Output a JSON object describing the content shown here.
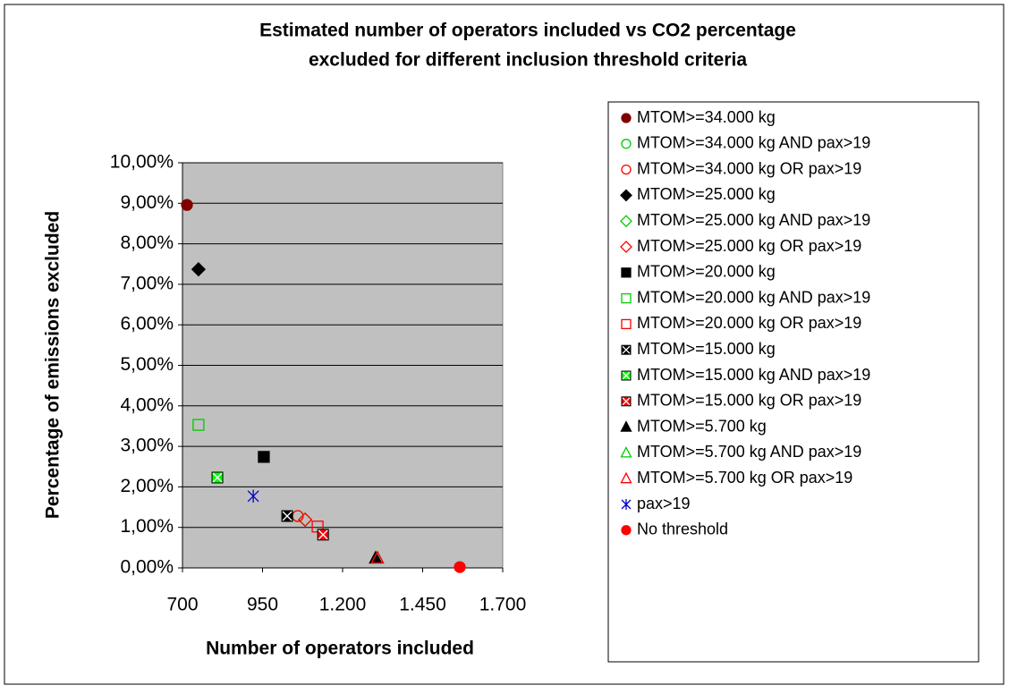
{
  "chart_data": {
    "type": "scatter",
    "title": [
      "Estimated number of operators included vs CO2 percentage",
      "excluded for different inclusion threshold criteria"
    ],
    "x_label": "Number of operators included",
    "y_label": "Percentage of emissions excluded",
    "xlim": [
      700,
      1700
    ],
    "xticks": [
      700,
      950,
      {
        "value": 1200,
        "label": "1.200"
      },
      {
        "value": 1450,
        "label": "1.450"
      },
      {
        "value": 1700,
        "label": "1.700"
      }
    ],
    "ylim": [
      0,
      10
    ],
    "yticks": [
      {
        "value": 0,
        "label": "0,00%"
      },
      {
        "value": 1,
        "label": "1,00%"
      },
      {
        "value": 2,
        "label": "2,00%"
      },
      {
        "value": 3,
        "label": "3,00%"
      },
      {
        "value": 4,
        "label": "4,00%"
      },
      {
        "value": 5,
        "label": "5,00%"
      },
      {
        "value": 6,
        "label": "6,00%"
      },
      {
        "value": 7,
        "label": "7,00%"
      },
      {
        "value": 8,
        "label": "8,00%"
      },
      {
        "value": 9,
        "label": "9,00%"
      },
      {
        "value": 10,
        "label": "10,00%"
      }
    ],
    "grid": true,
    "legend": "right",
    "series": [
      {
        "name": "MTOM>=34.000 kg",
        "color": "#800000",
        "marker": "circle",
        "filled": true,
        "x": [
          714
        ],
        "values": [
          8.96
        ]
      },
      {
        "name": "MTOM>=34.000 kg AND pax>19",
        "color": "#00cc00",
        "marker": "circle",
        "filled": false,
        "x": [
          1060
        ],
        "values": [
          1.28
        ]
      },
      {
        "name": "MTOM>=34.000 kg OR pax>19",
        "color": "#ff0000",
        "marker": "circle",
        "filled": false,
        "x": [
          1060
        ],
        "values": [
          1.28
        ]
      },
      {
        "name": "MTOM>=25.000 kg",
        "color": "#000000",
        "marker": "diamond",
        "filled": true,
        "x": [
          750
        ],
        "values": [
          7.37
        ]
      },
      {
        "name": "MTOM>=25.000 kg AND pax>19",
        "color": "#00cc00",
        "marker": "diamond",
        "filled": false,
        "x": [
          1083
        ],
        "values": [
          1.19
        ]
      },
      {
        "name": "MTOM>=25.000 kg OR pax>19",
        "color": "#ff0000",
        "marker": "diamond",
        "filled": false,
        "x": [
          1083
        ],
        "values": [
          1.19
        ]
      },
      {
        "name": "MTOM>=20.000 kg",
        "color": "#000000",
        "marker": "square",
        "filled": true,
        "x": [
          954
        ],
        "values": [
          2.74
        ]
      },
      {
        "name": "MTOM>=20.000 kg AND pax>19",
        "color": "#00cc00",
        "marker": "square",
        "filled": false,
        "x": [
          750
        ],
        "values": [
          3.53
        ]
      },
      {
        "name": "MTOM>=20.000 kg OR pax>19",
        "color": "#ff0000",
        "marker": "square",
        "filled": false,
        "x": [
          1122
        ],
        "values": [
          1.02
        ]
      },
      {
        "name": "MTOM>=15.000 kg",
        "color": "#000000",
        "marker": "xbox",
        "filled": true,
        "x": [
          1027
        ],
        "values": [
          1.28
        ]
      },
      {
        "name": "MTOM>=15.000 kg AND pax>19",
        "color": "#00ff00",
        "marker": "xbox",
        "filled": true,
        "x": [
          809
        ],
        "values": [
          2.23
        ]
      },
      {
        "name": "MTOM>=15.000 kg OR pax>19",
        "color": "#ff0000",
        "marker": "xbox",
        "filled": true,
        "x": [
          1139
        ],
        "values": [
          0.82
        ]
      },
      {
        "name": "MTOM>=5.700 kg",
        "color": "#000000",
        "marker": "triangle",
        "filled": true,
        "x": [
          1303
        ],
        "values": [
          0.24
        ]
      },
      {
        "name": "MTOM>=5.700 kg AND pax>19",
        "color": "#00cc00",
        "marker": "triangle",
        "filled": false,
        "x": [
          1309
        ],
        "values": [
          0.24
        ]
      },
      {
        "name": "MTOM>=5.700 kg OR pax>19",
        "color": "#ff0000",
        "marker": "triangle",
        "filled": false,
        "x": [
          1309
        ],
        "values": [
          0.24
        ]
      },
      {
        "name": "pax>19",
        "color": "#0000cc",
        "marker": "asterisk",
        "filled": false,
        "x": [
          921
        ],
        "values": [
          1.77
        ]
      },
      {
        "name": "No threshold",
        "color": "#ff0000",
        "marker": "circle",
        "filled": true,
        "x": [
          1566
        ],
        "values": [
          0.02
        ]
      }
    ]
  }
}
